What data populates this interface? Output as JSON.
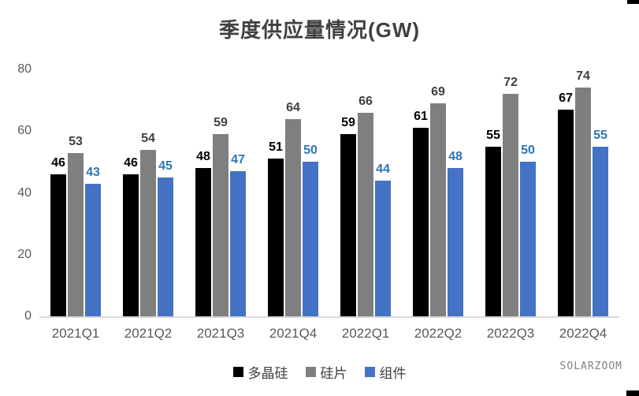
{
  "title": "季度供应量情况(GW)",
  "watermark": "SOLARZOOM",
  "colors": {
    "title_text": "#404040",
    "axis_text": "#595959",
    "axis_line": "#d9d9d9",
    "background": "#ffffff"
  },
  "chart_data": {
    "type": "bar",
    "title": "季度供应量情况(GW)",
    "categories": [
      "2021Q1",
      "2021Q2",
      "2021Q3",
      "2021Q4",
      "2022Q1",
      "2022Q2",
      "2022Q3",
      "2022Q4"
    ],
    "series": [
      {
        "name": "多晶硅",
        "color": "#000000",
        "label_color": "#000000",
        "values": [
          46,
          46,
          48,
          51,
          59,
          61,
          55,
          67
        ]
      },
      {
        "name": "硅片",
        "color": "#7f7f7f",
        "label_color": "#404040",
        "values": [
          53,
          54,
          59,
          64,
          66,
          69,
          72,
          74
        ]
      },
      {
        "name": "组件",
        "color": "#4472c4",
        "label_color": "#2e75b6",
        "values": [
          43,
          45,
          47,
          50,
          44,
          48,
          50,
          55
        ]
      }
    ],
    "xlabel": "",
    "ylabel": "",
    "ylim": [
      0,
      80
    ],
    "yticks": [
      0,
      20,
      40,
      60,
      80
    ],
    "grid": false,
    "data_labels": true,
    "legend_position": "bottom"
  }
}
